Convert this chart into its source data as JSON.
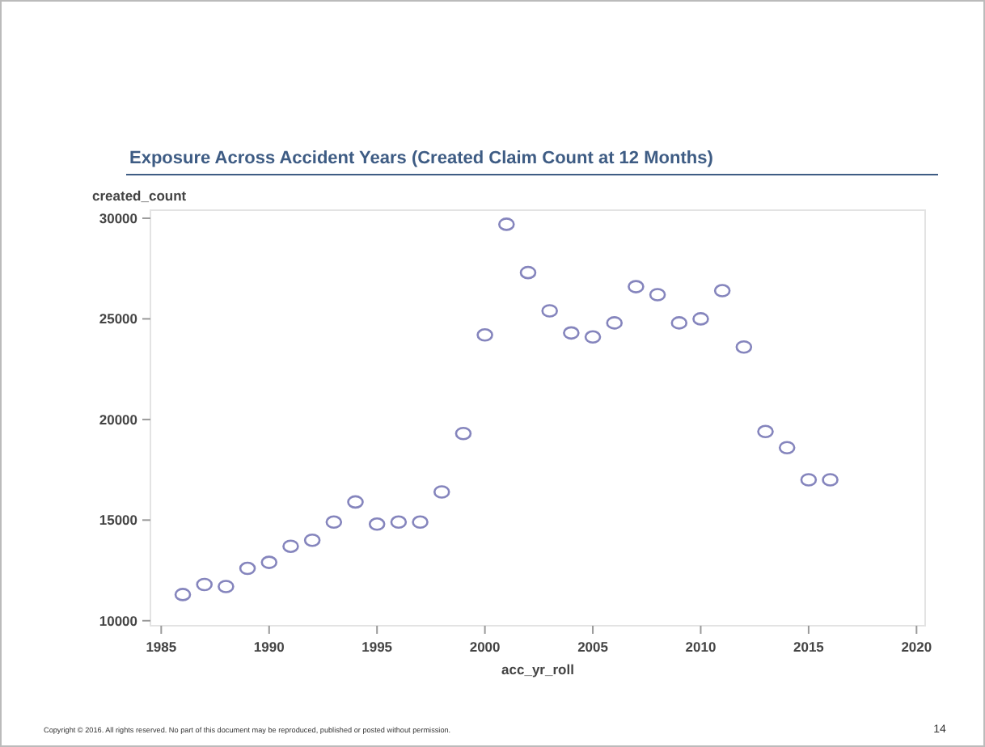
{
  "chart_data": {
    "type": "scatter",
    "title": "Exposure Across Accident Years (Created Claim Count at 12 Months)",
    "xlabel": "acc_yr_roll",
    "ylabel": "created_count",
    "x": [
      1986,
      1987,
      1988,
      1989,
      1990,
      1991,
      1992,
      1993,
      1994,
      1995,
      1996,
      1997,
      1998,
      1999,
      2000,
      2001,
      2002,
      2003,
      2004,
      2005,
      2006,
      2007,
      2008,
      2009,
      2010,
      2011,
      2012,
      2013,
      2014,
      2015,
      2016
    ],
    "series": [
      {
        "color": "#8585bd",
        "values": [
          11300,
          11800,
          11700,
          12600,
          12900,
          13700,
          14000,
          14900,
          15900,
          14800,
          14900,
          14900,
          16400,
          19300,
          24200,
          29700,
          27300,
          25400,
          24300,
          24100,
          24800,
          26600,
          26200,
          24800,
          25000,
          26400,
          23600,
          19400,
          18600,
          17000,
          17000
        ]
      }
    ],
    "xlim": [
      1984.5,
      2020.4
    ],
    "ylim": [
      9750,
      30400
    ],
    "xticks": [
      1985,
      1990,
      1995,
      2000,
      2005,
      2010,
      2015,
      2020
    ],
    "yticks": [
      10000,
      15000,
      20000,
      25000,
      30000
    ],
    "marker": "circle",
    "grid": false,
    "annotations": [
      "Copyright © 2016. All rights reserved. No part of this document may be reproduced, published or posted without permission.",
      "14"
    ]
  }
}
